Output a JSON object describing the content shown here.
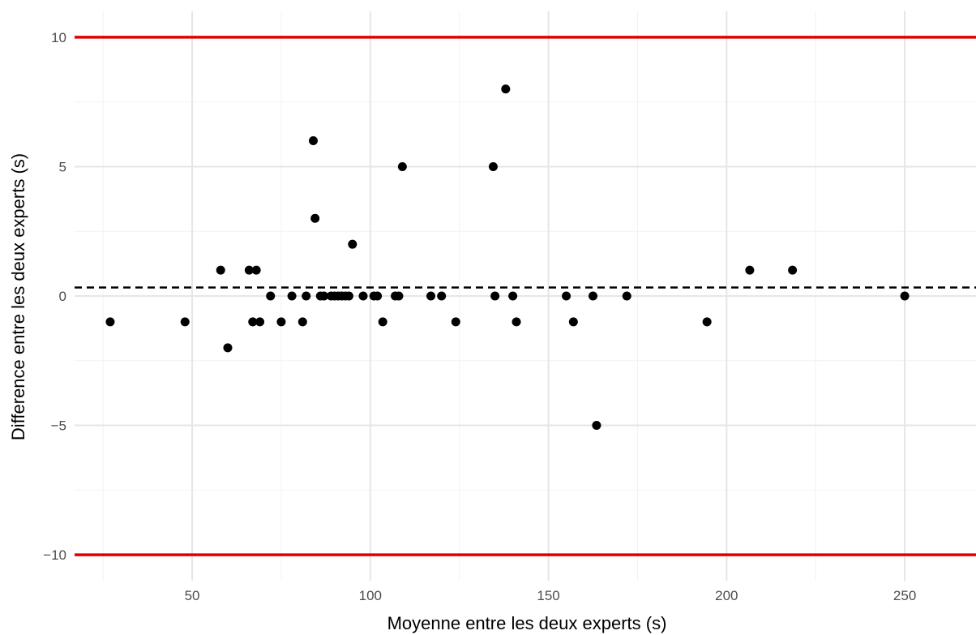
{
  "chart_data": {
    "type": "scatter",
    "title": "",
    "xlabel": "Moyenne entre les deux experts (s)",
    "ylabel": "Difference entre les deux experts (s)",
    "xlim": [
      17,
      270
    ],
    "ylim": [
      -11,
      11
    ],
    "x_ticks": [
      50,
      100,
      150,
      200,
      250
    ],
    "y_ticks": [
      -10,
      -5,
      0,
      5,
      10
    ],
    "x_tick_labels": [
      "50",
      "100",
      "150",
      "200",
      "250"
    ],
    "y_tick_labels": [
      "−10",
      "−5",
      "0",
      "5",
      "10"
    ],
    "grid": true,
    "legend": "none",
    "points": [
      {
        "x": 27,
        "y": -1
      },
      {
        "x": 48,
        "y": -1
      },
      {
        "x": 58,
        "y": 1
      },
      {
        "x": 60,
        "y": -2
      },
      {
        "x": 66,
        "y": 1
      },
      {
        "x": 67,
        "y": -1
      },
      {
        "x": 68,
        "y": 1
      },
      {
        "x": 69,
        "y": -1
      },
      {
        "x": 72,
        "y": 0
      },
      {
        "x": 75,
        "y": -1
      },
      {
        "x": 78,
        "y": 0
      },
      {
        "x": 81,
        "y": -1
      },
      {
        "x": 82,
        "y": 0
      },
      {
        "x": 84,
        "y": 6
      },
      {
        "x": 84.5,
        "y": 3
      },
      {
        "x": 86,
        "y": 0
      },
      {
        "x": 87,
        "y": 0
      },
      {
        "x": 89,
        "y": 0
      },
      {
        "x": 90,
        "y": 0
      },
      {
        "x": 91,
        "y": 0
      },
      {
        "x": 92,
        "y": 0
      },
      {
        "x": 93,
        "y": 0
      },
      {
        "x": 94,
        "y": 0
      },
      {
        "x": 95,
        "y": 2
      },
      {
        "x": 98,
        "y": 0
      },
      {
        "x": 101,
        "y": 0
      },
      {
        "x": 102,
        "y": 0
      },
      {
        "x": 103.5,
        "y": -1
      },
      {
        "x": 107,
        "y": 0
      },
      {
        "x": 108,
        "y": 0
      },
      {
        "x": 109,
        "y": 5
      },
      {
        "x": 117,
        "y": 0
      },
      {
        "x": 120,
        "y": 0
      },
      {
        "x": 124,
        "y": -1
      },
      {
        "x": 134.5,
        "y": 5
      },
      {
        "x": 135,
        "y": 0
      },
      {
        "x": 138,
        "y": 8
      },
      {
        "x": 140,
        "y": 0
      },
      {
        "x": 141,
        "y": -1
      },
      {
        "x": 155,
        "y": 0
      },
      {
        "x": 157,
        "y": -1
      },
      {
        "x": 162.5,
        "y": 0
      },
      {
        "x": 163.5,
        "y": -5
      },
      {
        "x": 172,
        "y": 0
      },
      {
        "x": 194.5,
        "y": -1
      },
      {
        "x": 206.5,
        "y": 1
      },
      {
        "x": 218.5,
        "y": 1
      },
      {
        "x": 250,
        "y": 0
      }
    ],
    "reference_lines": {
      "mean": {
        "y": 0.33,
        "style": "dashed",
        "color": "#000000"
      },
      "upper_limit": {
        "y": 10,
        "style": "solid",
        "color": "#e00000"
      },
      "lower_limit": {
        "y": -10,
        "style": "solid",
        "color": "#e00000"
      }
    }
  }
}
